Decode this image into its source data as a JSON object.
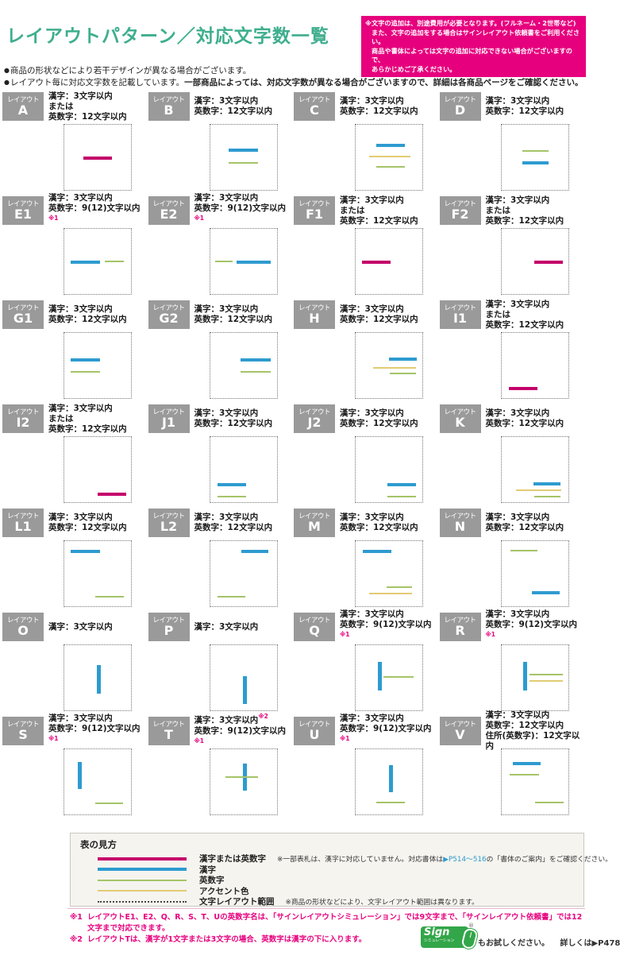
{
  "header": {
    "title": "レイアウトパターン／対応文字数一覧",
    "notice_lines": [
      "※文字の追加は、別途費用が必要となります。(フルネーム・2世帯など)",
      "また、文字の追加をする場合はサインレイアウト依頼書をご利用ください。",
      "商品や書体によっては文字の追加に対応できない場合がございますので、",
      "あらかじめご了承ください。"
    ],
    "bullets": [
      {
        "plain": "商品の形状などにより若干デザインが異なる場合がございます。",
        "bold": ""
      },
      {
        "plain": "レイアウト毎に対応文字数を記載しています。",
        "bold": "一部商品によっては、対応文字数が異なる場合がございますので、詳細は各商品ページをご確認ください。"
      }
    ]
  },
  "colors": {
    "title": "#3EAE8E",
    "notice_bg": "#E6007E",
    "label_bg": "#9A9A9A",
    "main": "#C4006A",
    "kanji": "#2E9BD0",
    "alnum": "#A5C468",
    "accent": "#E2CB74",
    "link": "#2E9BD0",
    "logo_green": "#33A649"
  },
  "layout_label_prefix": "レイアウト",
  "layouts": [
    {
      "id": "A",
      "specs": [
        {
          "t": "漢字：3文字以内"
        },
        {
          "t": "または"
        },
        {
          "t": "英数字：12文字以内"
        }
      ],
      "lines": [
        {
          "c": "main",
          "o": "h",
          "x": 28,
          "w": 44,
          "y": 49
        }
      ]
    },
    {
      "id": "B",
      "specs": [
        {
          "t": "漢字：3文字以内"
        },
        {
          "t": "英数字：12文字以内"
        }
      ],
      "lines": [
        {
          "c": "kanji",
          "o": "h",
          "x": 28,
          "w": 44,
          "y": 37
        },
        {
          "c": "alnum",
          "o": "h",
          "x": 28,
          "w": 44,
          "y": 57
        }
      ]
    },
    {
      "id": "C",
      "specs": [
        {
          "t": "漢字：3文字以内"
        },
        {
          "t": "英数字：12文字以内"
        }
      ],
      "lines": [
        {
          "c": "kanji",
          "o": "h",
          "x": 31,
          "w": 43,
          "y": 29
        },
        {
          "c": "accent",
          "o": "h",
          "x": 20,
          "w": 62,
          "y": 47
        },
        {
          "c": "alnum",
          "o": "h",
          "x": 31,
          "w": 43,
          "y": 63
        }
      ]
    },
    {
      "id": "D",
      "specs": [
        {
          "t": "漢字：3文字以内"
        },
        {
          "t": "英数字：12文字以内"
        }
      ],
      "lines": [
        {
          "c": "alnum",
          "o": "h",
          "x": 31,
          "w": 40,
          "y": 39
        },
        {
          "c": "kanji",
          "o": "h",
          "x": 31,
          "w": 40,
          "y": 56
        }
      ]
    },
    {
      "id": "E1",
      "specs": [
        {
          "t": "漢字：3文字以内"
        },
        {
          "t": "英数字：9(12)文字以内",
          "sup": "※1"
        }
      ],
      "lines": [
        {
          "c": "kanji",
          "o": "h",
          "x": 10,
          "w": 44,
          "y": 49
        },
        {
          "c": "alnum",
          "o": "h",
          "x": 61,
          "w": 28,
          "y": 49
        }
      ]
    },
    {
      "id": "E2",
      "specs": [
        {
          "t": "漢字：3文字以内"
        },
        {
          "t": "英数字：9(12)文字以内",
          "sup": "※1"
        }
      ],
      "lines": [
        {
          "c": "alnum",
          "o": "h",
          "x": 8,
          "w": 26,
          "y": 49
        },
        {
          "c": "kanji",
          "o": "h",
          "x": 40,
          "w": 51,
          "y": 49
        }
      ]
    },
    {
      "id": "F1",
      "specs": [
        {
          "t": "漢字：3文字以内"
        },
        {
          "t": "または"
        },
        {
          "t": "英数字：12文字以内"
        }
      ],
      "lines": [
        {
          "c": "main",
          "o": "h",
          "x": 9,
          "w": 43,
          "y": 49
        }
      ]
    },
    {
      "id": "F2",
      "specs": [
        {
          "t": "漢字：3文字以内"
        },
        {
          "t": "または"
        },
        {
          "t": "英数字：12文字以内"
        }
      ],
      "lines": [
        {
          "c": "main",
          "o": "h",
          "x": 49,
          "w": 43,
          "y": 49
        }
      ]
    },
    {
      "id": "G1",
      "specs": [
        {
          "t": "漢字：3文字以内"
        },
        {
          "t": "英数字：12文字以内"
        }
      ],
      "lines": [
        {
          "c": "kanji",
          "o": "h",
          "x": 9,
          "w": 45,
          "y": 39
        },
        {
          "c": "alnum",
          "o": "h",
          "x": 9,
          "w": 45,
          "y": 59
        }
      ]
    },
    {
      "id": "G2",
      "specs": [
        {
          "t": "漢字：3文字以内"
        },
        {
          "t": "英数字：12文字以内"
        }
      ],
      "lines": [
        {
          "c": "kanji",
          "o": "h",
          "x": 46,
          "w": 45,
          "y": 39
        },
        {
          "c": "alnum",
          "o": "h",
          "x": 46,
          "w": 45,
          "y": 59
        }
      ]
    },
    {
      "id": "H",
      "specs": [
        {
          "t": "漢字：3文字以内"
        },
        {
          "t": "英数字：12文字以内"
        }
      ],
      "lines": [
        {
          "c": "kanji",
          "o": "h",
          "x": 50,
          "w": 42,
          "y": 38
        },
        {
          "c": "accent",
          "o": "h",
          "x": 26,
          "w": 65,
          "y": 52
        },
        {
          "c": "alnum",
          "o": "h",
          "x": 51,
          "w": 40,
          "y": 61
        }
      ]
    },
    {
      "id": "I1",
      "specs": [
        {
          "t": "漢字：3文字以内"
        },
        {
          "t": "または"
        },
        {
          "t": "英数字：12文字以内"
        }
      ],
      "lines": [
        {
          "c": "main",
          "o": "h",
          "x": 11,
          "w": 43,
          "y": 83
        }
      ]
    },
    {
      "id": "I2",
      "specs": [
        {
          "t": "漢字：3文字以内"
        },
        {
          "t": "または"
        },
        {
          "t": "英数字：12文字以内"
        }
      ],
      "lines": [
        {
          "c": "main",
          "o": "h",
          "x": 50,
          "w": 43,
          "y": 85
        }
      ]
    },
    {
      "id": "J1",
      "specs": [
        {
          "t": "漢字：3文字以内"
        },
        {
          "t": "英数字：12文字以内"
        }
      ],
      "lines": [
        {
          "c": "kanji",
          "o": "h",
          "x": 11,
          "w": 43,
          "y": 71
        },
        {
          "c": "alnum",
          "o": "h",
          "x": 11,
          "w": 43,
          "y": 90
        }
      ]
    },
    {
      "id": "J2",
      "specs": [
        {
          "t": "漢字：3文字以内"
        },
        {
          "t": "英数字：12文字以内"
        }
      ],
      "lines": [
        {
          "c": "kanji",
          "o": "h",
          "x": 48,
          "w": 43,
          "y": 71
        },
        {
          "c": "alnum",
          "o": "h",
          "x": 48,
          "w": 43,
          "y": 90
        }
      ]
    },
    {
      "id": "K",
      "specs": [
        {
          "t": "漢字：3文字以内"
        },
        {
          "t": "英数字：12文字以内"
        }
      ],
      "lines": [
        {
          "c": "kanji",
          "o": "h",
          "x": 48,
          "w": 41,
          "y": 70
        },
        {
          "c": "accent",
          "o": "h",
          "x": 22,
          "w": 68,
          "y": 81
        },
        {
          "c": "alnum",
          "o": "h",
          "x": 49,
          "w": 40,
          "y": 90
        }
      ]
    },
    {
      "id": "L1",
      "specs": [
        {
          "t": "漢字：3文字以内"
        },
        {
          "t": "英数字：12文字以内"
        }
      ],
      "lines": [
        {
          "c": "kanji",
          "o": "h",
          "x": 10,
          "w": 43,
          "y": 14
        },
        {
          "c": "alnum",
          "o": "h",
          "x": 47,
          "w": 42,
          "y": 84
        }
      ]
    },
    {
      "id": "L2",
      "specs": [
        {
          "t": "漢字：3文字以内"
        },
        {
          "t": "英数字：12文字以内"
        }
      ],
      "lines": [
        {
          "c": "kanji",
          "o": "h",
          "x": 47,
          "w": 41,
          "y": 14
        },
        {
          "c": "alnum",
          "o": "h",
          "x": 11,
          "w": 42,
          "y": 84
        }
      ]
    },
    {
      "id": "M",
      "specs": [
        {
          "t": "漢字：3文字以内"
        },
        {
          "t": "英数字：12文字以内"
        }
      ],
      "lines": [
        {
          "c": "kanji",
          "o": "h",
          "x": 11,
          "w": 42,
          "y": 14
        },
        {
          "c": "alnum",
          "o": "h",
          "x": 47,
          "w": 38,
          "y": 70
        },
        {
          "c": "accent",
          "o": "h",
          "x": 20,
          "w": 65,
          "y": 79
        }
      ]
    },
    {
      "id": "N",
      "specs": [
        {
          "t": "漢字：3文字以内"
        },
        {
          "t": "英数字：12文字以内"
        }
      ],
      "lines": [
        {
          "c": "alnum",
          "o": "h",
          "x": 14,
          "w": 40,
          "y": 14
        },
        {
          "c": "kanji",
          "o": "h",
          "x": 46,
          "w": 41,
          "y": 77
        }
      ]
    },
    {
      "id": "O",
      "specs": [
        {
          "t": "漢字：3文字以内"
        }
      ],
      "lines": [
        {
          "c": "kanji",
          "o": "v",
          "x": 49,
          "y": 31,
          "h": 44
        }
      ]
    },
    {
      "id": "P",
      "specs": [
        {
          "t": "漢字：3文字以内"
        }
      ],
      "lines": [
        {
          "c": "kanji",
          "o": "v",
          "x": 49,
          "y": 47,
          "h": 43
        }
      ]
    },
    {
      "id": "Q",
      "specs": [
        {
          "t": "漢字：3文字以内"
        },
        {
          "t": "英数字：9(12)文字以内",
          "sup": "※1"
        }
      ],
      "lines": [
        {
          "c": "kanji",
          "o": "v",
          "x": 33,
          "y": 26,
          "h": 44
        },
        {
          "c": "alnum",
          "o": "h",
          "x": 42,
          "w": 45,
          "y": 47
        }
      ]
    },
    {
      "id": "R",
      "specs": [
        {
          "t": "漢字：3文字以内"
        },
        {
          "t": "英数字：9(12)文字以内",
          "sup": "※1"
        }
      ],
      "lines": [
        {
          "c": "kanji",
          "o": "v",
          "x": 33,
          "y": 25,
          "h": 45
        },
        {
          "c": "alnum",
          "o": "h",
          "x": 42,
          "w": 50,
          "y": 44
        },
        {
          "c": "accent",
          "o": "h",
          "x": 42,
          "w": 50,
          "y": 54
        }
      ]
    },
    {
      "id": "S",
      "specs": [
        {
          "t": "漢字：3文字以内"
        },
        {
          "t": "英数字：9(12)文字以内",
          "sup": "※1"
        }
      ],
      "lines": [
        {
          "c": "kanji",
          "o": "v",
          "x": 20,
          "y": 19,
          "h": 42
        },
        {
          "c": "alnum",
          "o": "h",
          "x": 46,
          "w": 42,
          "y": 82
        }
      ]
    },
    {
      "id": "T",
      "specs": [
        {
          "t": "漢字：3文字以内",
          "sup": "※2"
        },
        {
          "t": "英数字：9(12)文字以内",
          "sup": "※1"
        }
      ],
      "lines": [
        {
          "c": "kanji",
          "o": "v",
          "x": 49,
          "y": 22,
          "h": 41
        },
        {
          "c": "alnum",
          "o": "h",
          "x": 23,
          "w": 49,
          "y": 41
        }
      ]
    },
    {
      "id": "U",
      "specs": [
        {
          "t": "漢字：3文字以内"
        },
        {
          "t": "英数字：9(12)文字以内",
          "sup": "※1"
        }
      ],
      "lines": [
        {
          "c": "kanji",
          "o": "v",
          "x": 50,
          "y": 24,
          "h": 42
        },
        {
          "c": "alnum",
          "o": "h",
          "x": 31,
          "w": 43,
          "y": 81
        }
      ]
    },
    {
      "id": "V",
      "specs": [
        {
          "t": "漢字：3文字以内"
        },
        {
          "t": "英数字：12文字以内"
        },
        {
          "t": "住所(英数字)：12文字以内"
        }
      ],
      "lines": [
        {
          "c": "kanji",
          "o": "h",
          "x": 17,
          "w": 42,
          "y": 20
        },
        {
          "c": "alnum",
          "o": "h",
          "x": 13,
          "w": 44,
          "y": 38
        },
        {
          "c": "alnum",
          "o": "h",
          "x": 51,
          "w": 43,
          "y": 80
        }
      ]
    }
  ],
  "legend": {
    "title": "表の見方",
    "items": [
      {
        "swatch": "main",
        "label": "漢字または英数字",
        "note_pre": "※一部表札は、漢字に対応していません。対応書体は",
        "note_link": "▶P514〜516",
        "note_post": "の「書体のご案内」をご確認ください。"
      },
      {
        "swatch": "kanji",
        "label": "漢字",
        "note_pre": "",
        "note_link": "",
        "note_post": ""
      },
      {
        "swatch": "alnum",
        "label": "英数字",
        "note_pre": "",
        "note_link": "",
        "note_post": ""
      },
      {
        "swatch": "accent",
        "label": "アクセント色",
        "note_pre": "",
        "note_link": "",
        "note_post": ""
      },
      {
        "swatch": "range",
        "label": "文字レイアウト範囲",
        "note_pre": "※商品の形状などにより、文字レイアウト範囲は異なります。",
        "note_link": "",
        "note_post": ""
      }
    ]
  },
  "footnotes": [
    {
      "mark": "※1",
      "text": "レイアウトE1、E2、Q、R、S、T、Uの英数字名は、「サインレイアウトシミュレーション」では9文字まで、「サインレイアウト依頼書」では12文字まで対応できます。"
    },
    {
      "mark": "※2",
      "text": "レイアウトTは、漢字が1文字または3文字の場合、英数字は漢字の下に入ります。"
    }
  ],
  "footer": {
    "logo_main": "Sign",
    "logo_sub": "シミュレーション",
    "logo_reg": "®",
    "after_logo": "もお試しください。",
    "detail": "詳しくは▶P478"
  }
}
